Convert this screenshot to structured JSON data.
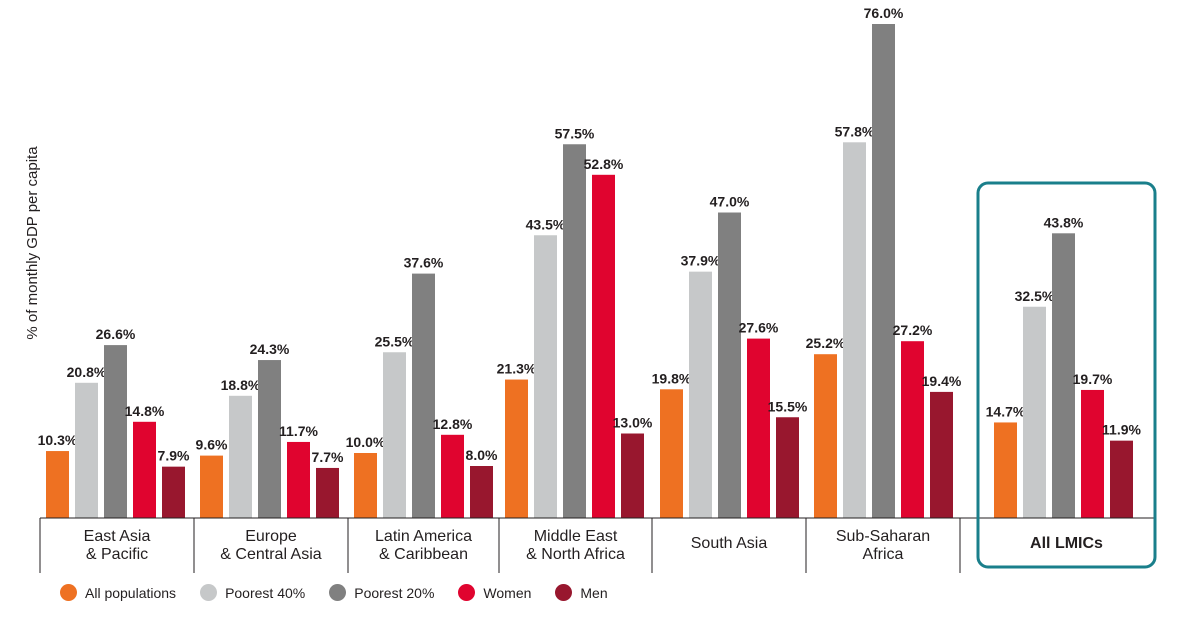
{
  "chart_data": {
    "type": "bar",
    "ylabel": "% of monthly GDP per capita",
    "ylim": [
      0,
      78
    ],
    "grid": false,
    "legend_position": "bottom",
    "categories": [
      [
        "East Asia",
        "& Pacific"
      ],
      [
        "Europe",
        "& Central Asia"
      ],
      [
        "Latin America",
        "& Caribbean"
      ],
      [
        "Middle East",
        "& North Africa"
      ],
      [
        "South Asia"
      ],
      [
        "Sub-Saharan",
        "Africa"
      ],
      [
        "All LMICs"
      ]
    ],
    "highlighted_category": 6,
    "series": [
      {
        "name": "All populations",
        "color": "#ee7122",
        "values": [
          10.3,
          9.6,
          10.0,
          21.3,
          19.8,
          25.2,
          14.7
        ],
        "labels": [
          "10.3%",
          "9.6%",
          "10.0%",
          "21.3%",
          "19.8%",
          "25.2%",
          "14.7%"
        ]
      },
      {
        "name": "Poorest 40%",
        "color": "#c6c8c9",
        "values": [
          20.8,
          18.8,
          25.5,
          43.5,
          37.9,
          57.8,
          32.5
        ],
        "labels": [
          "20.8%",
          "18.8%",
          "25.5%",
          "43.5%",
          "37.9%",
          "57.8%",
          "32.5%"
        ]
      },
      {
        "name": "Poorest 20%",
        "color": "#808080",
        "values": [
          26.6,
          24.3,
          37.6,
          57.5,
          47.0,
          76.0,
          43.8
        ],
        "labels": [
          "26.6%",
          "24.3%",
          "37.6%",
          "57.5%",
          "47.0%",
          "76.0%",
          "43.8%"
        ]
      },
      {
        "name": "Women",
        "color": "#e0042f",
        "values": [
          14.8,
          11.7,
          12.8,
          52.8,
          27.6,
          27.2,
          19.7
        ],
        "labels": [
          "14.8%",
          "11.7%",
          "12.8%",
          "52.8%",
          "27.6%",
          "27.2%",
          "19.7%"
        ]
      },
      {
        "name": "Men",
        "color": "#98172e",
        "values": [
          7.9,
          7.7,
          8.0,
          13.0,
          15.5,
          19.4,
          11.9
        ],
        "labels": [
          "7.9%",
          "7.7%",
          "8.0%",
          "13.0%",
          "15.5%",
          "19.4%",
          "11.9%"
        ]
      }
    ],
    "highlight_color": "#1a7f8b"
  }
}
